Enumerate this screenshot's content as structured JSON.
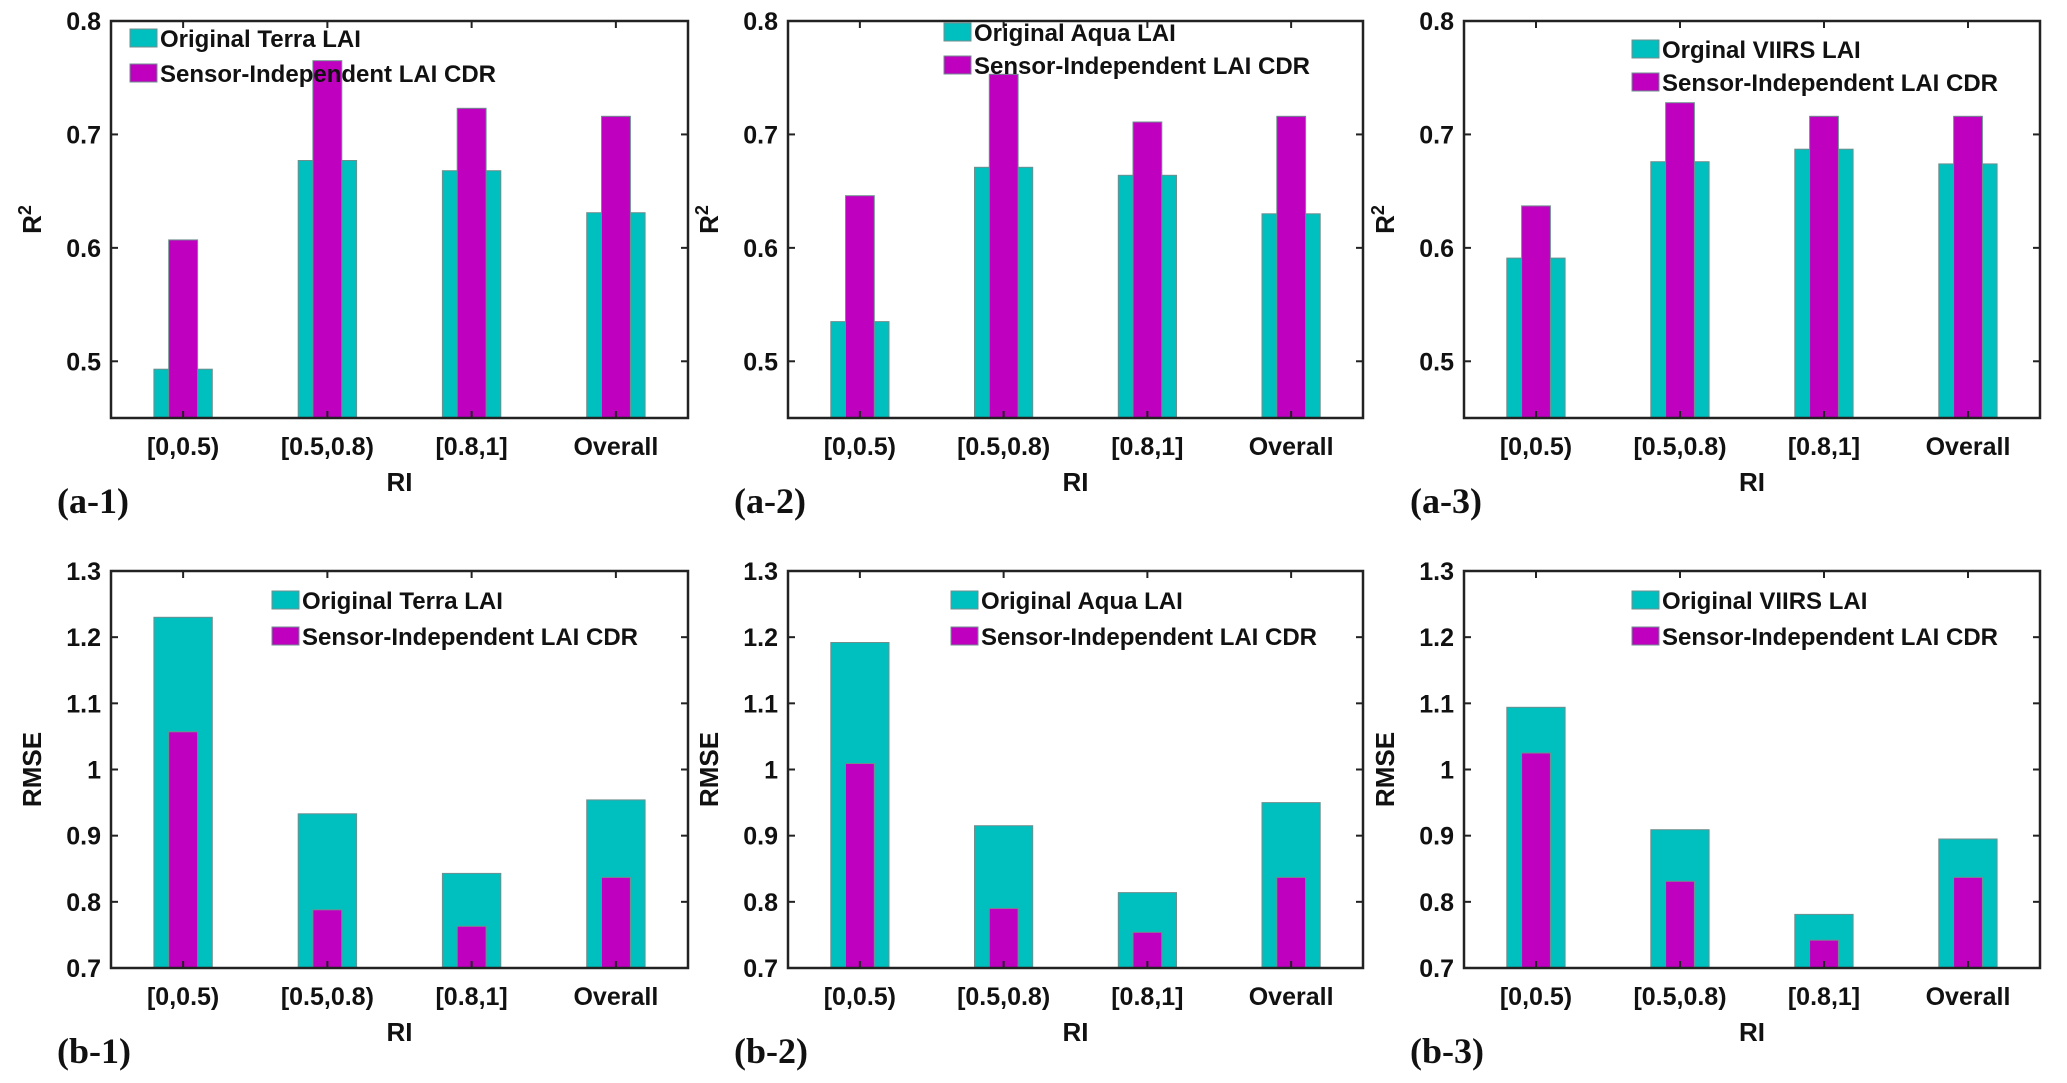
{
  "colors": {
    "original": "#00BFBF",
    "cdr": "#BF00BF",
    "bar_edge": "#6f8f8f",
    "axis": "#222222"
  },
  "chart_data": [
    {
      "id": "a-1",
      "panel_label": "(a-1)",
      "type": "bar",
      "categories": [
        "[0,0.5)",
        "[0.5,0.8)",
        "[0.8,1]",
        "Overall"
      ],
      "xlabel": "RI",
      "ylabel": "R",
      "ylabel_sup": "2",
      "ylim": [
        0.45,
        0.8
      ],
      "yticks": [
        0.5,
        0.6,
        0.7,
        0.8
      ],
      "ytick_labels": [
        "0.5",
        "0.6",
        "0.7",
        "0.8"
      ],
      "legend": "top-left",
      "series": [
        {
          "name": "Original Terra LAI",
          "color_key": "original",
          "values": [
            0.493,
            0.677,
            0.668,
            0.631
          ]
        },
        {
          "name": "Sensor-Independent LAI CDR",
          "color_key": "cdr",
          "values": [
            0.607,
            0.765,
            0.723,
            0.716
          ]
        }
      ]
    },
    {
      "id": "a-2",
      "panel_label": "(a-2)",
      "type": "bar",
      "categories": [
        "[0,0.5)",
        "[0.5,0.8)",
        "[0.8,1]",
        "Overall"
      ],
      "xlabel": "RI",
      "ylabel": "R",
      "ylabel_sup": "2",
      "ylim": [
        0.45,
        0.8
      ],
      "yticks": [
        0.5,
        0.6,
        0.7,
        0.8
      ],
      "ytick_labels": [
        "0.5",
        "0.6",
        "0.7",
        "0.8"
      ],
      "legend": "top",
      "series": [
        {
          "name": "Original Aqua LAI",
          "color_key": "original",
          "values": [
            0.535,
            0.671,
            0.664,
            0.63
          ]
        },
        {
          "name": "Sensor-Independent LAI CDR",
          "color_key": "cdr",
          "values": [
            0.646,
            0.753,
            0.711,
            0.716
          ]
        }
      ]
    },
    {
      "id": "a-3",
      "panel_label": "(a-3)",
      "type": "bar",
      "categories": [
        "[0,0.5)",
        "[0.5,0.8)",
        "[0.8,1]",
        "Overall"
      ],
      "xlabel": "RI",
      "ylabel": "R",
      "ylabel_sup": "2",
      "ylim": [
        0.45,
        0.8
      ],
      "yticks": [
        0.5,
        0.6,
        0.7,
        0.8
      ],
      "ytick_labels": [
        "0.5",
        "0.6",
        "0.7",
        "0.8"
      ],
      "legend": "top-right",
      "series": [
        {
          "name": "Orginal VIIRS LAI",
          "color_key": "original",
          "values": [
            0.591,
            0.676,
            0.687,
            0.674
          ]
        },
        {
          "name": "Sensor-Independent LAI CDR",
          "color_key": "cdr",
          "values": [
            0.637,
            0.728,
            0.716,
            0.716
          ]
        }
      ]
    },
    {
      "id": "b-1",
      "panel_label": "(b-1)",
      "type": "bar",
      "categories": [
        "[0,0.5)",
        "[0.5,0.8)",
        "[0.8,1]",
        "Overall"
      ],
      "xlabel": "RI",
      "ylabel": "RMSE",
      "ylabel_sup": "",
      "ylim": [
        0.7,
        1.3
      ],
      "yticks": [
        0.7,
        0.8,
        0.9,
        1.0,
        1.1,
        1.2,
        1.3
      ],
      "ytick_labels": [
        "0.7",
        "0.8",
        "0.9",
        "1",
        "1.1",
        "1.2",
        "1.3"
      ],
      "legend": "top-right",
      "series": [
        {
          "name": "Original Terra LAI",
          "color_key": "original",
          "values": [
            1.23,
            0.933,
            0.843,
            0.954
          ]
        },
        {
          "name": "Sensor-Independent LAI CDR",
          "color_key": "cdr",
          "values": [
            1.057,
            0.788,
            0.763,
            0.837
          ]
        }
      ]
    },
    {
      "id": "b-2",
      "panel_label": "(b-2)",
      "type": "bar",
      "categories": [
        "[0,0.5)",
        "[0.5,0.8)",
        "[0.8,1]",
        "Overall"
      ],
      "xlabel": "RI",
      "ylabel": "RMSE",
      "ylabel_sup": "",
      "ylim": [
        0.7,
        1.3
      ],
      "yticks": [
        0.7,
        0.8,
        0.9,
        1.0,
        1.1,
        1.2,
        1.3
      ],
      "ytick_labels": [
        "0.7",
        "0.8",
        "0.9",
        "1",
        "1.1",
        "1.2",
        "1.3"
      ],
      "legend": "top-right",
      "series": [
        {
          "name": "Original Aqua LAI",
          "color_key": "original",
          "values": [
            1.192,
            0.915,
            0.814,
            0.95
          ]
        },
        {
          "name": "Sensor-Independent LAI CDR",
          "color_key": "cdr",
          "values": [
            1.009,
            0.79,
            0.754,
            0.837
          ]
        }
      ]
    },
    {
      "id": "b-3",
      "panel_label": "(b-3)",
      "type": "bar",
      "categories": [
        "[0,0.5)",
        "[0.5,0.8)",
        "[0.8,1]",
        "Overall"
      ],
      "xlabel": "RI",
      "ylabel": "RMSE",
      "ylabel_sup": "",
      "ylim": [
        0.7,
        1.3
      ],
      "yticks": [
        0.7,
        0.8,
        0.9,
        1.0,
        1.1,
        1.2,
        1.3
      ],
      "ytick_labels": [
        "0.7",
        "0.8",
        "0.9",
        "1",
        "1.1",
        "1.2",
        "1.3"
      ],
      "legend": "top-right",
      "series": [
        {
          "name": "Original VIIRS LAI",
          "color_key": "original",
          "values": [
            1.094,
            0.909,
            0.781,
            0.895
          ]
        },
        {
          "name": "Sensor-Independent LAI CDR",
          "color_key": "cdr",
          "values": [
            1.025,
            0.831,
            0.742,
            0.837
          ]
        }
      ]
    }
  ]
}
